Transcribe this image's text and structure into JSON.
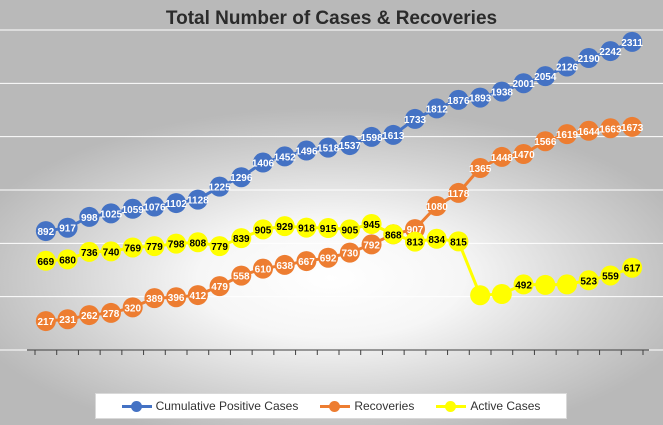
{
  "chart_data": {
    "type": "line",
    "title": "Total Number of Cases & Recoveries",
    "xlabel": "",
    "ylabel": "",
    "ylim": [
      0,
      2400
    ],
    "grid": true,
    "legend": "bottom",
    "series": [
      {
        "name": "Cumulative Positive Cases",
        "color": "#4472C4",
        "values": [
          892,
          917,
          998,
          1025,
          1059,
          1076,
          1102,
          1128,
          1225,
          1296,
          1406,
          1452,
          1496,
          1518,
          1537,
          1598,
          1613,
          1733,
          1812,
          1876,
          1893,
          1938,
          2001,
          2054,
          2126,
          2190,
          2242,
          2311
        ],
        "labels": [
          "892",
          "917",
          "998",
          "1025",
          "1059",
          "1076",
          "1102",
          "1128",
          "1225",
          "1296",
          "1406",
          "1452",
          "1496",
          "1518",
          "1537",
          "1598",
          "1613",
          "1733",
          "1812",
          "1876",
          "1893",
          "1938",
          "2001",
          "2054",
          "2126",
          "2190",
          "2242",
          "2311"
        ]
      },
      {
        "name": "Recoveries",
        "color": "#ED7D31",
        "values": [
          217,
          231,
          262,
          278,
          320,
          389,
          396,
          412,
          479,
          558,
          610,
          638,
          667,
          692,
          730,
          792,
          868,
          907,
          1080,
          1178,
          1365,
          1448,
          1470,
          1566,
          1619,
          1644,
          1663,
          1673
        ],
        "labels": [
          "217",
          "231",
          "262",
          "278",
          "320",
          "389",
          "396",
          "412",
          "479",
          "558",
          "610",
          "638",
          "667",
          "692",
          "730",
          "792",
          "868",
          "907",
          "1080",
          "1178",
          "1365",
          "1448",
          "1470",
          "1566",
          "1619",
          "1644",
          "1663",
          "1673"
        ]
      },
      {
        "name": "Active Cases",
        "color": "#FFFF00",
        "values": [
          669,
          680,
          736,
          740,
          769,
          779,
          798,
          808,
          779,
          839,
          905,
          929,
          918,
          915,
          905,
          945,
          868,
          813,
          834,
          815,
          411,
          420,
          492,
          488,
          492,
          523,
          559,
          617
        ],
        "labels": [
          "669",
          "680",
          "736",
          "740",
          "769",
          "779",
          "798",
          "808",
          "779",
          "839",
          "905",
          "929",
          "918",
          "915",
          "905",
          "945",
          "868",
          "813",
          "834",
          "815",
          "",
          "",
          "492",
          "",
          "",
          "523",
          "559",
          "617"
        ]
      }
    ]
  }
}
